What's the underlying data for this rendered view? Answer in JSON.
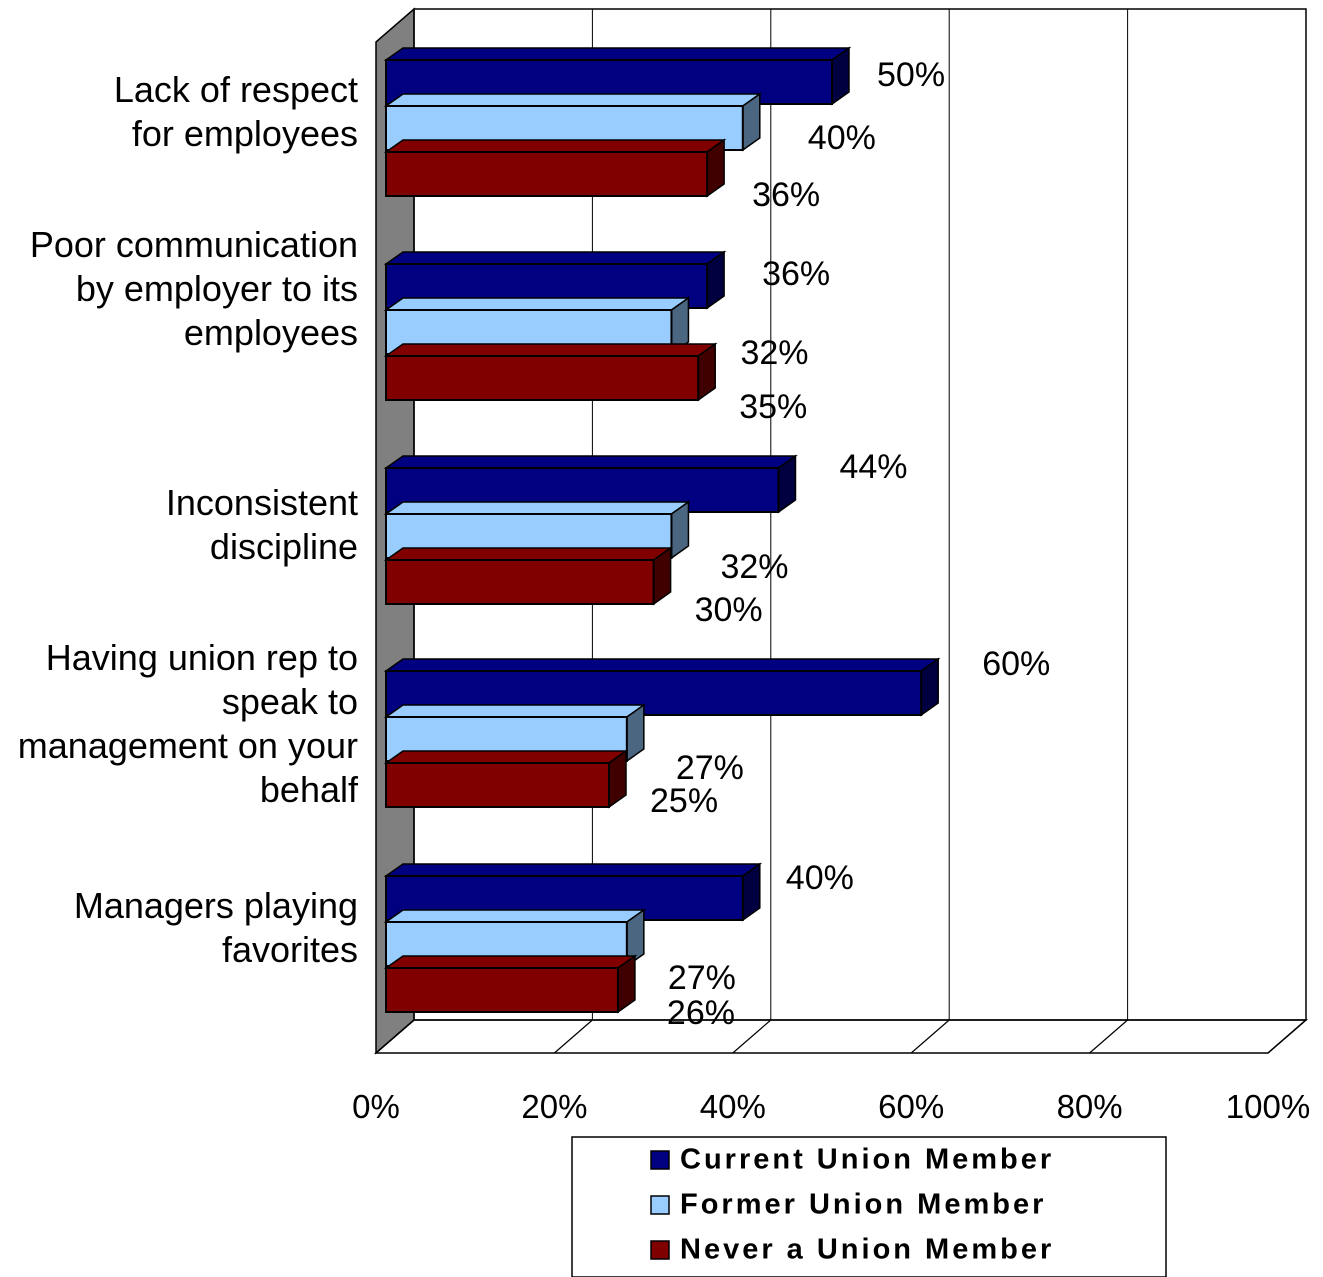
{
  "chart_data": {
    "type": "bar",
    "orientation": "horizontal",
    "three_d": true,
    "categories": [
      [
        "Lack of respect",
        "for employees"
      ],
      [
        "Poor communication",
        "by employer to its",
        "employees"
      ],
      [
        "Inconsistent",
        "discipline"
      ],
      [
        "Having union rep to",
        "speak to",
        "management on your",
        "behalf"
      ],
      [
        "Managers playing",
        "favorites"
      ]
    ],
    "series": [
      {
        "name": "Current Union Member",
        "values": [
          50,
          36,
          44,
          60,
          40
        ],
        "labels": [
          "50%",
          "36%",
          "44%",
          "60%",
          "40%"
        ],
        "color": "#000080",
        "side_color": "#000040"
      },
      {
        "name": "Former Union Member",
        "values": [
          40,
          32,
          32,
          27,
          27
        ],
        "labels": [
          "40%",
          "32%",
          "32%",
          "27%",
          "27%"
        ],
        "color": "#99CCFF",
        "side_color": "#4A6680"
      },
      {
        "name": "Never a Union Member",
        "values": [
          36,
          35,
          30,
          25,
          26
        ],
        "labels": [
          "36%",
          "35%",
          "30%",
          "25%",
          "26%"
        ],
        "color": "#800000",
        "side_color": "#400000"
      }
    ],
    "xlim": [
      0,
      100
    ],
    "xticks": [
      0,
      20,
      40,
      60,
      80,
      100
    ],
    "xtick_labels": [
      "0%",
      "20%",
      "40%",
      "60%",
      "80%",
      "100%"
    ],
    "grid": true,
    "legend_position": "bottom-right",
    "colors": {
      "wall": "#808080",
      "grid": "#000000",
      "background": "#ffffff"
    }
  }
}
